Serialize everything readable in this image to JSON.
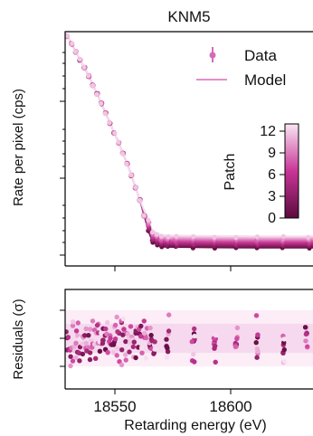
{
  "chart_data": [
    {
      "type": "scatter",
      "title": "KNM5",
      "ylabel": "Rate per pixel (cps)",
      "yscale": "log",
      "xlim": [
        18530,
        18646
      ],
      "legend": {
        "placement": "top-right",
        "entries": [
          "Data",
          "Model"
        ]
      },
      "colorbar": {
        "label": "Patch",
        "ticks": [
          "0",
          "3",
          "6",
          "9",
          "12"
        ],
        "range": [
          0,
          13
        ]
      },
      "model_curve": {
        "x": [
          18531,
          18535,
          18540,
          18545,
          18550,
          18555,
          18560,
          18565,
          18569,
          18571,
          18575,
          18580,
          18600,
          18620,
          18646
        ],
        "y_rel": [
          1.0,
          0.93,
          0.84,
          0.74,
          0.63,
          0.52,
          0.4,
          0.26,
          0.12,
          0.07,
          0.05,
          0.048,
          0.046,
          0.045,
          0.045
        ]
      },
      "data_x": [
        18531,
        18533,
        18535,
        18537,
        18539,
        18541,
        18543,
        18545,
        18547,
        18549,
        18551,
        18553,
        18555,
        18557,
        18559,
        18561,
        18563,
        18565,
        18567,
        18569,
        18571,
        18573,
        18575,
        18578,
        18582,
        18590,
        18600,
        18610,
        18620,
        18632,
        18644
      ]
    },
    {
      "type": "scatter",
      "ylabel": "Residuals (σ)",
      "xlabel": "Retarding energy (eV)",
      "xlim": [
        18530,
        18646
      ],
      "ylim": [
        -2.5,
        2.5
      ],
      "xticks": [
        "18550",
        "18600"
      ],
      "bands": [
        1,
        2
      ],
      "dense_region": [
        18531,
        18572
      ],
      "sparse_columns": [
        18578,
        18590,
        18600,
        18610,
        18620,
        18632,
        18643
      ]
    }
  ],
  "colors": {
    "patch_low": "#6a0f47",
    "patch_mid": "#cc3d9a",
    "patch_high": "#f7dff0",
    "band_1sigma": "#f6d9ee",
    "band_2sigma": "#fcedf7",
    "model_line": "#e38ecb"
  }
}
